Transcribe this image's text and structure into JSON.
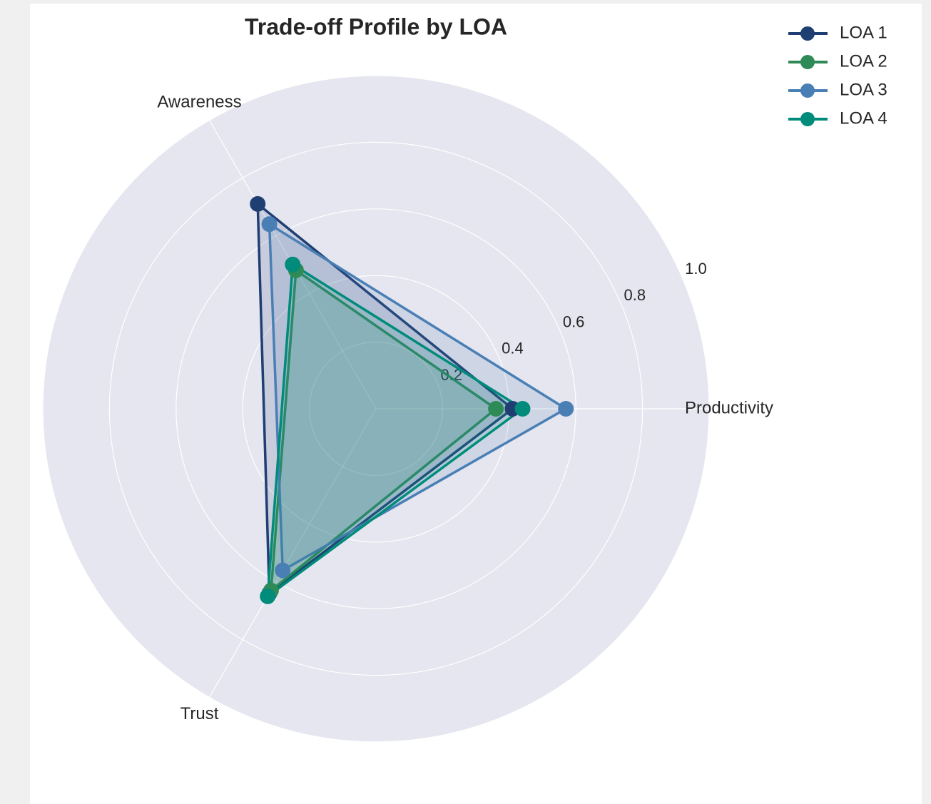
{
  "chart_data": {
    "type": "radar",
    "title": "Trade-off Profile by LOA",
    "categories": [
      "Productivity",
      "Awareness",
      "Trust"
    ],
    "series": [
      {
        "name": "LOA 1",
        "color": "#1f3f73",
        "values": [
          0.41,
          0.71,
          0.64
        ]
      },
      {
        "name": "LOA 2",
        "color": "#2e8b57",
        "values": [
          0.36,
          0.48,
          0.63
        ]
      },
      {
        "name": "LOA 3",
        "color": "#4a7fb5",
        "values": [
          0.57,
          0.64,
          0.56
        ]
      },
      {
        "name": "LOA 4",
        "color": "#008b7a",
        "values": [
          0.44,
          0.5,
          0.65
        ]
      }
    ],
    "ylim": [
      0,
      1.0
    ],
    "yticks": [
      0.2,
      0.4,
      0.6,
      0.8,
      {
        "value": 1.0,
        "label": "1.0"
      }
    ],
    "grid": true,
    "legend": "upper right"
  }
}
